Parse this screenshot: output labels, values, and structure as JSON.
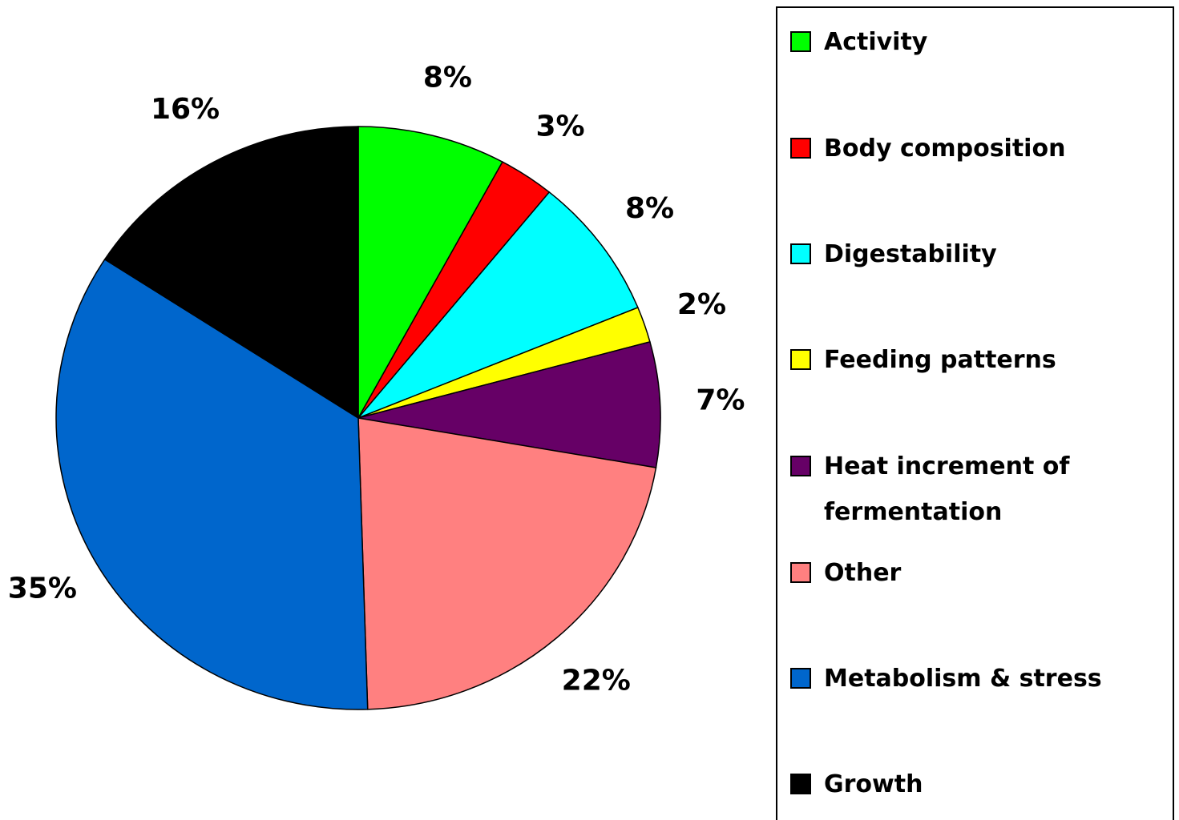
{
  "chart_data": {
    "type": "pie",
    "categories": [
      "Activity",
      "Body composition",
      "Digestability",
      "Feeding patterns",
      "Heat increment of fermentation",
      "Other",
      "Metabolism & stress",
      "Growth"
    ],
    "values": [
      8,
      3,
      8,
      2,
      7,
      22,
      35,
      16
    ],
    "value_labels": [
      "8%",
      "3%",
      "8%",
      "2%",
      "7%",
      "22%",
      "35%",
      "16%"
    ],
    "colors": [
      "#00ff00",
      "#ff0000",
      "#00ffff",
      "#ffff00",
      "#660066",
      "#ff8080",
      "#0066cc",
      "#000000"
    ],
    "legend": "right"
  }
}
